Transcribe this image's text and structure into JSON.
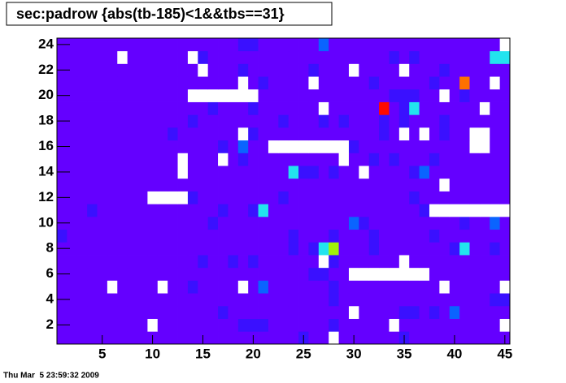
{
  "chart_data": {
    "type": "heatmap",
    "title": "sec:padrow {abs(tb-185)<1&&tbs==31}",
    "footer": "Thu Mar  5 23:59:32 2009",
    "xlim": [
      0.5,
      45.5
    ],
    "ylim": [
      0.5,
      24.5
    ],
    "xticks": [
      5,
      10,
      15,
      20,
      25,
      30,
      35,
      40,
      45
    ],
    "yticks": [
      2,
      4,
      6,
      8,
      10,
      12,
      14,
      16,
      18,
      20,
      22,
      24
    ],
    "palette": [
      "#ffffff",
      "#6400ff",
      "#3a10ff",
      "#0a64ff",
      "#22e4ee",
      "#a0f20a",
      "#ff7000",
      "#ff0a00"
    ],
    "z": [
      [
        1,
        1,
        1,
        1,
        1,
        1,
        1,
        1,
        1,
        1,
        1,
        1,
        1,
        1,
        1,
        1,
        1,
        1,
        1,
        1,
        1,
        1,
        1,
        1,
        2,
        1,
        1,
        0,
        1,
        1,
        1,
        1,
        1,
        1,
        2,
        1,
        1,
        1,
        1,
        1,
        1,
        1,
        1,
        1,
        1
      ],
      [
        1,
        1,
        1,
        1,
        1,
        1,
        1,
        1,
        1,
        0,
        1,
        1,
        1,
        1,
        1,
        1,
        1,
        1,
        2,
        2,
        2,
        1,
        1,
        1,
        1,
        1,
        1,
        2,
        1,
        1,
        1,
        1,
        1,
        0,
        1,
        1,
        1,
        1,
        1,
        1,
        1,
        1,
        1,
        1,
        0
      ],
      [
        1,
        1,
        1,
        1,
        1,
        1,
        1,
        1,
        1,
        1,
        1,
        1,
        1,
        1,
        1,
        1,
        2,
        1,
        1,
        1,
        1,
        1,
        1,
        1,
        1,
        1,
        1,
        1,
        1,
        0,
        1,
        1,
        1,
        1,
        2,
        2,
        1,
        2,
        1,
        3,
        1,
        1,
        1,
        1,
        1
      ],
      [
        1,
        1,
        1,
        1,
        1,
        1,
        1,
        1,
        1,
        1,
        1,
        1,
        1,
        1,
        1,
        1,
        1,
        1,
        1,
        1,
        1,
        1,
        1,
        1,
        1,
        1,
        1,
        2,
        1,
        1,
        1,
        1,
        1,
        1,
        1,
        1,
        1,
        1,
        1,
        1,
        1,
        1,
        1,
        2,
        2
      ],
      [
        1,
        1,
        1,
        1,
        1,
        0,
        1,
        1,
        1,
        1,
        0,
        1,
        1,
        2,
        1,
        1,
        1,
        1,
        0,
        1,
        3,
        1,
        1,
        1,
        1,
        1,
        1,
        2,
        1,
        1,
        1,
        1,
        1,
        1,
        1,
        1,
        1,
        1,
        0,
        1,
        1,
        1,
        1,
        1,
        0
      ],
      [
        1,
        1,
        1,
        1,
        1,
        1,
        1,
        1,
        1,
        1,
        1,
        1,
        1,
        1,
        1,
        1,
        1,
        1,
        1,
        1,
        1,
        1,
        1,
        1,
        1,
        2,
        2,
        1,
        1,
        0,
        0,
        0,
        0,
        0,
        0,
        0,
        0,
        1,
        1,
        1,
        1,
        1,
        1,
        1,
        1
      ],
      [
        1,
        1,
        1,
        1,
        1,
        1,
        1,
        1,
        1,
        1,
        1,
        1,
        1,
        1,
        2,
        1,
        1,
        2,
        1,
        2,
        1,
        1,
        1,
        1,
        1,
        1,
        0,
        2,
        1,
        1,
        1,
        1,
        1,
        1,
        0,
        1,
        1,
        1,
        1,
        1,
        1,
        1,
        1,
        1,
        1
      ],
      [
        1,
        1,
        1,
        1,
        1,
        1,
        1,
        1,
        1,
        1,
        1,
        1,
        1,
        1,
        1,
        1,
        1,
        1,
        1,
        1,
        1,
        1,
        1,
        2,
        1,
        2,
        4,
        5,
        1,
        1,
        1,
        2,
        1,
        1,
        1,
        1,
        1,
        1,
        1,
        2,
        4,
        1,
        1,
        2,
        1
      ],
      [
        2,
        1,
        1,
        1,
        1,
        1,
        1,
        1,
        1,
        1,
        1,
        1,
        1,
        1,
        1,
        1,
        1,
        1,
        1,
        1,
        1,
        1,
        1,
        2,
        1,
        1,
        1,
        2,
        1,
        1,
        1,
        2,
        1,
        1,
        1,
        1,
        1,
        2,
        1,
        1,
        1,
        1,
        1,
        1,
        1
      ],
      [
        1,
        1,
        1,
        1,
        1,
        1,
        1,
        1,
        1,
        1,
        1,
        1,
        1,
        1,
        1,
        2,
        1,
        1,
        1,
        1,
        1,
        1,
        1,
        1,
        1,
        1,
        1,
        1,
        1,
        3,
        2,
        1,
        1,
        1,
        1,
        1,
        1,
        1,
        1,
        1,
        2,
        1,
        1,
        3,
        1
      ],
      [
        1,
        1,
        1,
        2,
        1,
        1,
        1,
        1,
        1,
        1,
        1,
        1,
        1,
        1,
        1,
        1,
        2,
        1,
        1,
        2,
        4,
        1,
        1,
        1,
        1,
        1,
        1,
        1,
        1,
        1,
        1,
        1,
        1,
        1,
        1,
        1,
        2,
        0,
        0,
        0,
        0,
        0,
        0,
        0,
        0
      ],
      [
        1,
        1,
        1,
        1,
        1,
        1,
        1,
        1,
        1,
        0,
        0,
        0,
        0,
        2,
        1,
        1,
        1,
        1,
        1,
        1,
        1,
        1,
        2,
        1,
        1,
        1,
        1,
        1,
        1,
        1,
        1,
        1,
        1,
        1,
        1,
        2,
        1,
        1,
        1,
        1,
        1,
        1,
        1,
        1,
        1
      ],
      [
        1,
        1,
        1,
        1,
        1,
        1,
        1,
        1,
        1,
        1,
        1,
        1,
        1,
        1,
        1,
        1,
        1,
        1,
        1,
        1,
        1,
        1,
        1,
        1,
        1,
        1,
        1,
        1,
        1,
        1,
        1,
        1,
        1,
        1,
        1,
        1,
        1,
        1,
        0,
        1,
        1,
        1,
        1,
        1,
        1
      ],
      [
        1,
        1,
        1,
        1,
        1,
        1,
        1,
        1,
        1,
        1,
        1,
        1,
        0,
        1,
        1,
        1,
        1,
        1,
        1,
        1,
        1,
        1,
        1,
        4,
        2,
        2,
        1,
        2,
        1,
        1,
        0,
        1,
        1,
        1,
        1,
        2,
        3,
        1,
        1,
        1,
        1,
        1,
        1,
        1,
        1
      ],
      [
        1,
        1,
        1,
        1,
        1,
        1,
        1,
        1,
        1,
        1,
        1,
        1,
        0,
        1,
        1,
        1,
        0,
        1,
        2,
        1,
        1,
        1,
        1,
        1,
        1,
        1,
        1,
        1,
        0,
        1,
        1,
        2,
        1,
        2,
        1,
        1,
        1,
        2,
        1,
        1,
        1,
        1,
        1,
        1,
        1
      ],
      [
        1,
        1,
        1,
        1,
        1,
        1,
        1,
        1,
        1,
        1,
        1,
        1,
        1,
        1,
        1,
        1,
        2,
        1,
        3,
        1,
        1,
        0,
        0,
        0,
        0,
        0,
        0,
        0,
        0,
        2,
        1,
        1,
        1,
        1,
        1,
        1,
        1,
        1,
        1,
        1,
        1,
        0,
        0,
        1,
        1
      ],
      [
        1,
        1,
        1,
        1,
        1,
        1,
        1,
        1,
        1,
        1,
        1,
        2,
        1,
        1,
        1,
        1,
        1,
        1,
        0,
        2,
        1,
        1,
        1,
        1,
        1,
        1,
        1,
        1,
        1,
        1,
        1,
        1,
        2,
        1,
        0,
        1,
        0,
        1,
        2,
        1,
        1,
        0,
        0,
        1,
        1
      ],
      [
        1,
        1,
        1,
        1,
        1,
        1,
        1,
        1,
        1,
        1,
        1,
        1,
        1,
        2,
        1,
        1,
        1,
        1,
        1,
        1,
        1,
        1,
        2,
        1,
        1,
        1,
        2,
        1,
        2,
        1,
        1,
        1,
        2,
        1,
        2,
        1,
        1,
        1,
        2,
        1,
        1,
        1,
        1,
        1,
        1
      ],
      [
        1,
        1,
        1,
        1,
        1,
        1,
        1,
        1,
        1,
        1,
        1,
        1,
        1,
        1,
        1,
        2,
        1,
        1,
        1,
        2,
        1,
        1,
        1,
        1,
        1,
        1,
        0,
        1,
        1,
        1,
        1,
        1,
        7,
        1,
        2,
        4,
        1,
        1,
        1,
        1,
        1,
        1,
        0,
        1,
        1
      ],
      [
        1,
        1,
        1,
        1,
        1,
        1,
        1,
        1,
        1,
        1,
        1,
        1,
        1,
        0,
        0,
        0,
        0,
        0,
        0,
        0,
        1,
        1,
        1,
        1,
        1,
        1,
        1,
        1,
        1,
        1,
        1,
        1,
        1,
        2,
        2,
        2,
        1,
        1,
        0,
        1,
        2,
        1,
        1,
        1,
        1
      ],
      [
        1,
        1,
        1,
        1,
        1,
        1,
        1,
        1,
        1,
        1,
        1,
        1,
        1,
        1,
        1,
        1,
        1,
        1,
        0,
        1,
        2,
        1,
        1,
        1,
        1,
        0,
        1,
        1,
        1,
        1,
        1,
        2,
        1,
        1,
        1,
        1,
        1,
        2,
        1,
        1,
        6,
        1,
        1,
        0,
        1
      ],
      [
        1,
        1,
        1,
        1,
        1,
        1,
        1,
        1,
        1,
        1,
        1,
        1,
        1,
        1,
        0,
        1,
        1,
        1,
        2,
        1,
        1,
        1,
        1,
        1,
        1,
        2,
        1,
        1,
        1,
        0,
        1,
        1,
        1,
        1,
        0,
        1,
        1,
        1,
        2,
        1,
        1,
        1,
        1,
        1,
        1
      ],
      [
        1,
        1,
        1,
        1,
        1,
        1,
        0,
        1,
        1,
        1,
        1,
        1,
        1,
        0,
        2,
        1,
        1,
        1,
        1,
        1,
        1,
        1,
        1,
        1,
        1,
        1,
        1,
        1,
        1,
        1,
        1,
        1,
        1,
        2,
        1,
        2,
        1,
        1,
        1,
        1,
        1,
        1,
        1,
        4,
        4
      ],
      [
        1,
        1,
        1,
        1,
        1,
        1,
        1,
        1,
        1,
        1,
        1,
        1,
        1,
        1,
        1,
        1,
        1,
        1,
        2,
        2,
        1,
        1,
        1,
        1,
        1,
        1,
        3,
        1,
        1,
        1,
        1,
        1,
        1,
        1,
        1,
        1,
        1,
        1,
        1,
        1,
        1,
        1,
        1,
        1,
        0
      ]
    ]
  }
}
